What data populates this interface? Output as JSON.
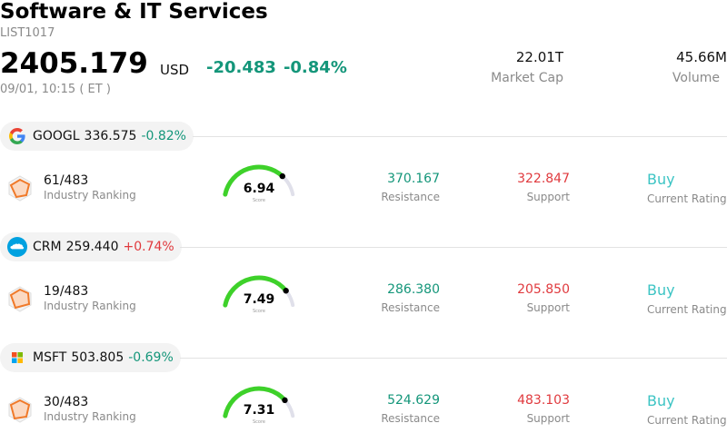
{
  "header": {
    "title": "Software & IT Services",
    "subtitle": "LIST1017",
    "price": "2405.179",
    "currency": "USD",
    "change": "-20.483",
    "change_pct": "-0.84%",
    "timestamp": "09/01, 10:15  ( ET )"
  },
  "stats": {
    "market_cap_value": "22.01T",
    "market_cap_label": "Market Cap",
    "volume_value": "45.66M",
    "volume_label": "Volume"
  },
  "colors": {
    "negative": "#14967a",
    "positive": "#e03a3e",
    "gauge_fill": "#3ed12a",
    "gauge_track": "#e0e0ea",
    "rating": "#3cc4c4"
  },
  "stocks": [
    {
      "symbol": "GOOGL",
      "price": "336.575",
      "change_pct": "-0.82%",
      "direction": "neg",
      "logo": "google-logo",
      "rank": "61/483",
      "rank_label": "Industry Ranking",
      "score": "6.94",
      "score_value": 6.94,
      "score_caption": "Score",
      "resistance": "370.167",
      "resistance_label": "Resistance",
      "support": "322.847",
      "support_label": "Support",
      "rating": "Buy",
      "rating_label": "Current Rating"
    },
    {
      "symbol": "CRM",
      "price": "259.440",
      "change_pct": "+0.74%",
      "direction": "pos",
      "logo": "salesforce-logo",
      "rank": "19/483",
      "rank_label": "Industry Ranking",
      "score": "7.49",
      "score_value": 7.49,
      "score_caption": "Score",
      "resistance": "286.380",
      "resistance_label": "Resistance",
      "support": "205.850",
      "support_label": "Support",
      "rating": "Buy",
      "rating_label": "Current Rating"
    },
    {
      "symbol": "MSFT",
      "price": "503.805",
      "change_pct": "-0.69%",
      "direction": "neg",
      "logo": "microsoft-logo",
      "rank": "30/483",
      "rank_label": "Industry Ranking",
      "score": "7.31",
      "score_value": 7.31,
      "score_caption": "Score",
      "resistance": "524.629",
      "resistance_label": "Resistance",
      "support": "483.103",
      "support_label": "Support",
      "rating": "Buy",
      "rating_label": "Current Rating"
    }
  ]
}
